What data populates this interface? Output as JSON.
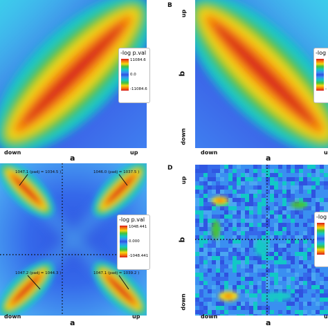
{
  "panels": {
    "A": {
      "letter": "",
      "x_low": "down",
      "x_high": "up",
      "xlabel": "a",
      "legend": {
        "title": "-log p.val",
        "max": "11084.6",
        "mid": "0.0",
        "min": "-11084.6"
      }
    },
    "B": {
      "letter": "B",
      "x_low": "down",
      "x_high": "u",
      "xlabel": "a",
      "y_low": "down",
      "y_high": "up",
      "ylabel": "b",
      "legend": {
        "title": "-log p.val",
        "max": "",
        "mid": "",
        "min": "-"
      }
    },
    "C": {
      "letter": "",
      "x_low": "down",
      "x_high": "up",
      "xlabel": "a",
      "legend": {
        "title": "-log p.val",
        "max": "1048.441",
        "mid": "0.000",
        "min": "-1048.441"
      },
      "annotations": [
        {
          "text": "1047.1 (padj = 1034.5 )"
        },
        {
          "text": "1046.0 (padj = 1037.5 )"
        },
        {
          "text": "1047.2 (padj = 1044.3 )"
        },
        {
          "text": "1047.1 (padj = 1039.2 )"
        }
      ]
    },
    "D": {
      "letter": "D",
      "x_low": "down",
      "x_high": "u",
      "xlabel": "a",
      "y_low": "down",
      "y_high": "up",
      "ylabel": "b",
      "legend": {
        "title": "-log"
      }
    }
  },
  "chart_data": [
    {
      "type": "heatmap",
      "colormap": "jet",
      "description_values": {
        "scale_max": 11084.6,
        "scale_mid": 0.0,
        "scale_min": -11084.6
      }
    },
    {
      "type": "heatmap",
      "colormap": "jet"
    },
    {
      "type": "heatmap",
      "colormap": "jet",
      "description_values": {
        "scale_max": 1048.441,
        "scale_mid": 0.0,
        "scale_min": -1048.441,
        "peaks": [
          1047.1,
          1046.0,
          1047.2,
          1047.1
        ],
        "padj": [
          1034.5,
          1037.5,
          1044.3,
          1039.2
        ]
      }
    },
    {
      "type": "heatmap",
      "colormap": "jet"
    }
  ]
}
